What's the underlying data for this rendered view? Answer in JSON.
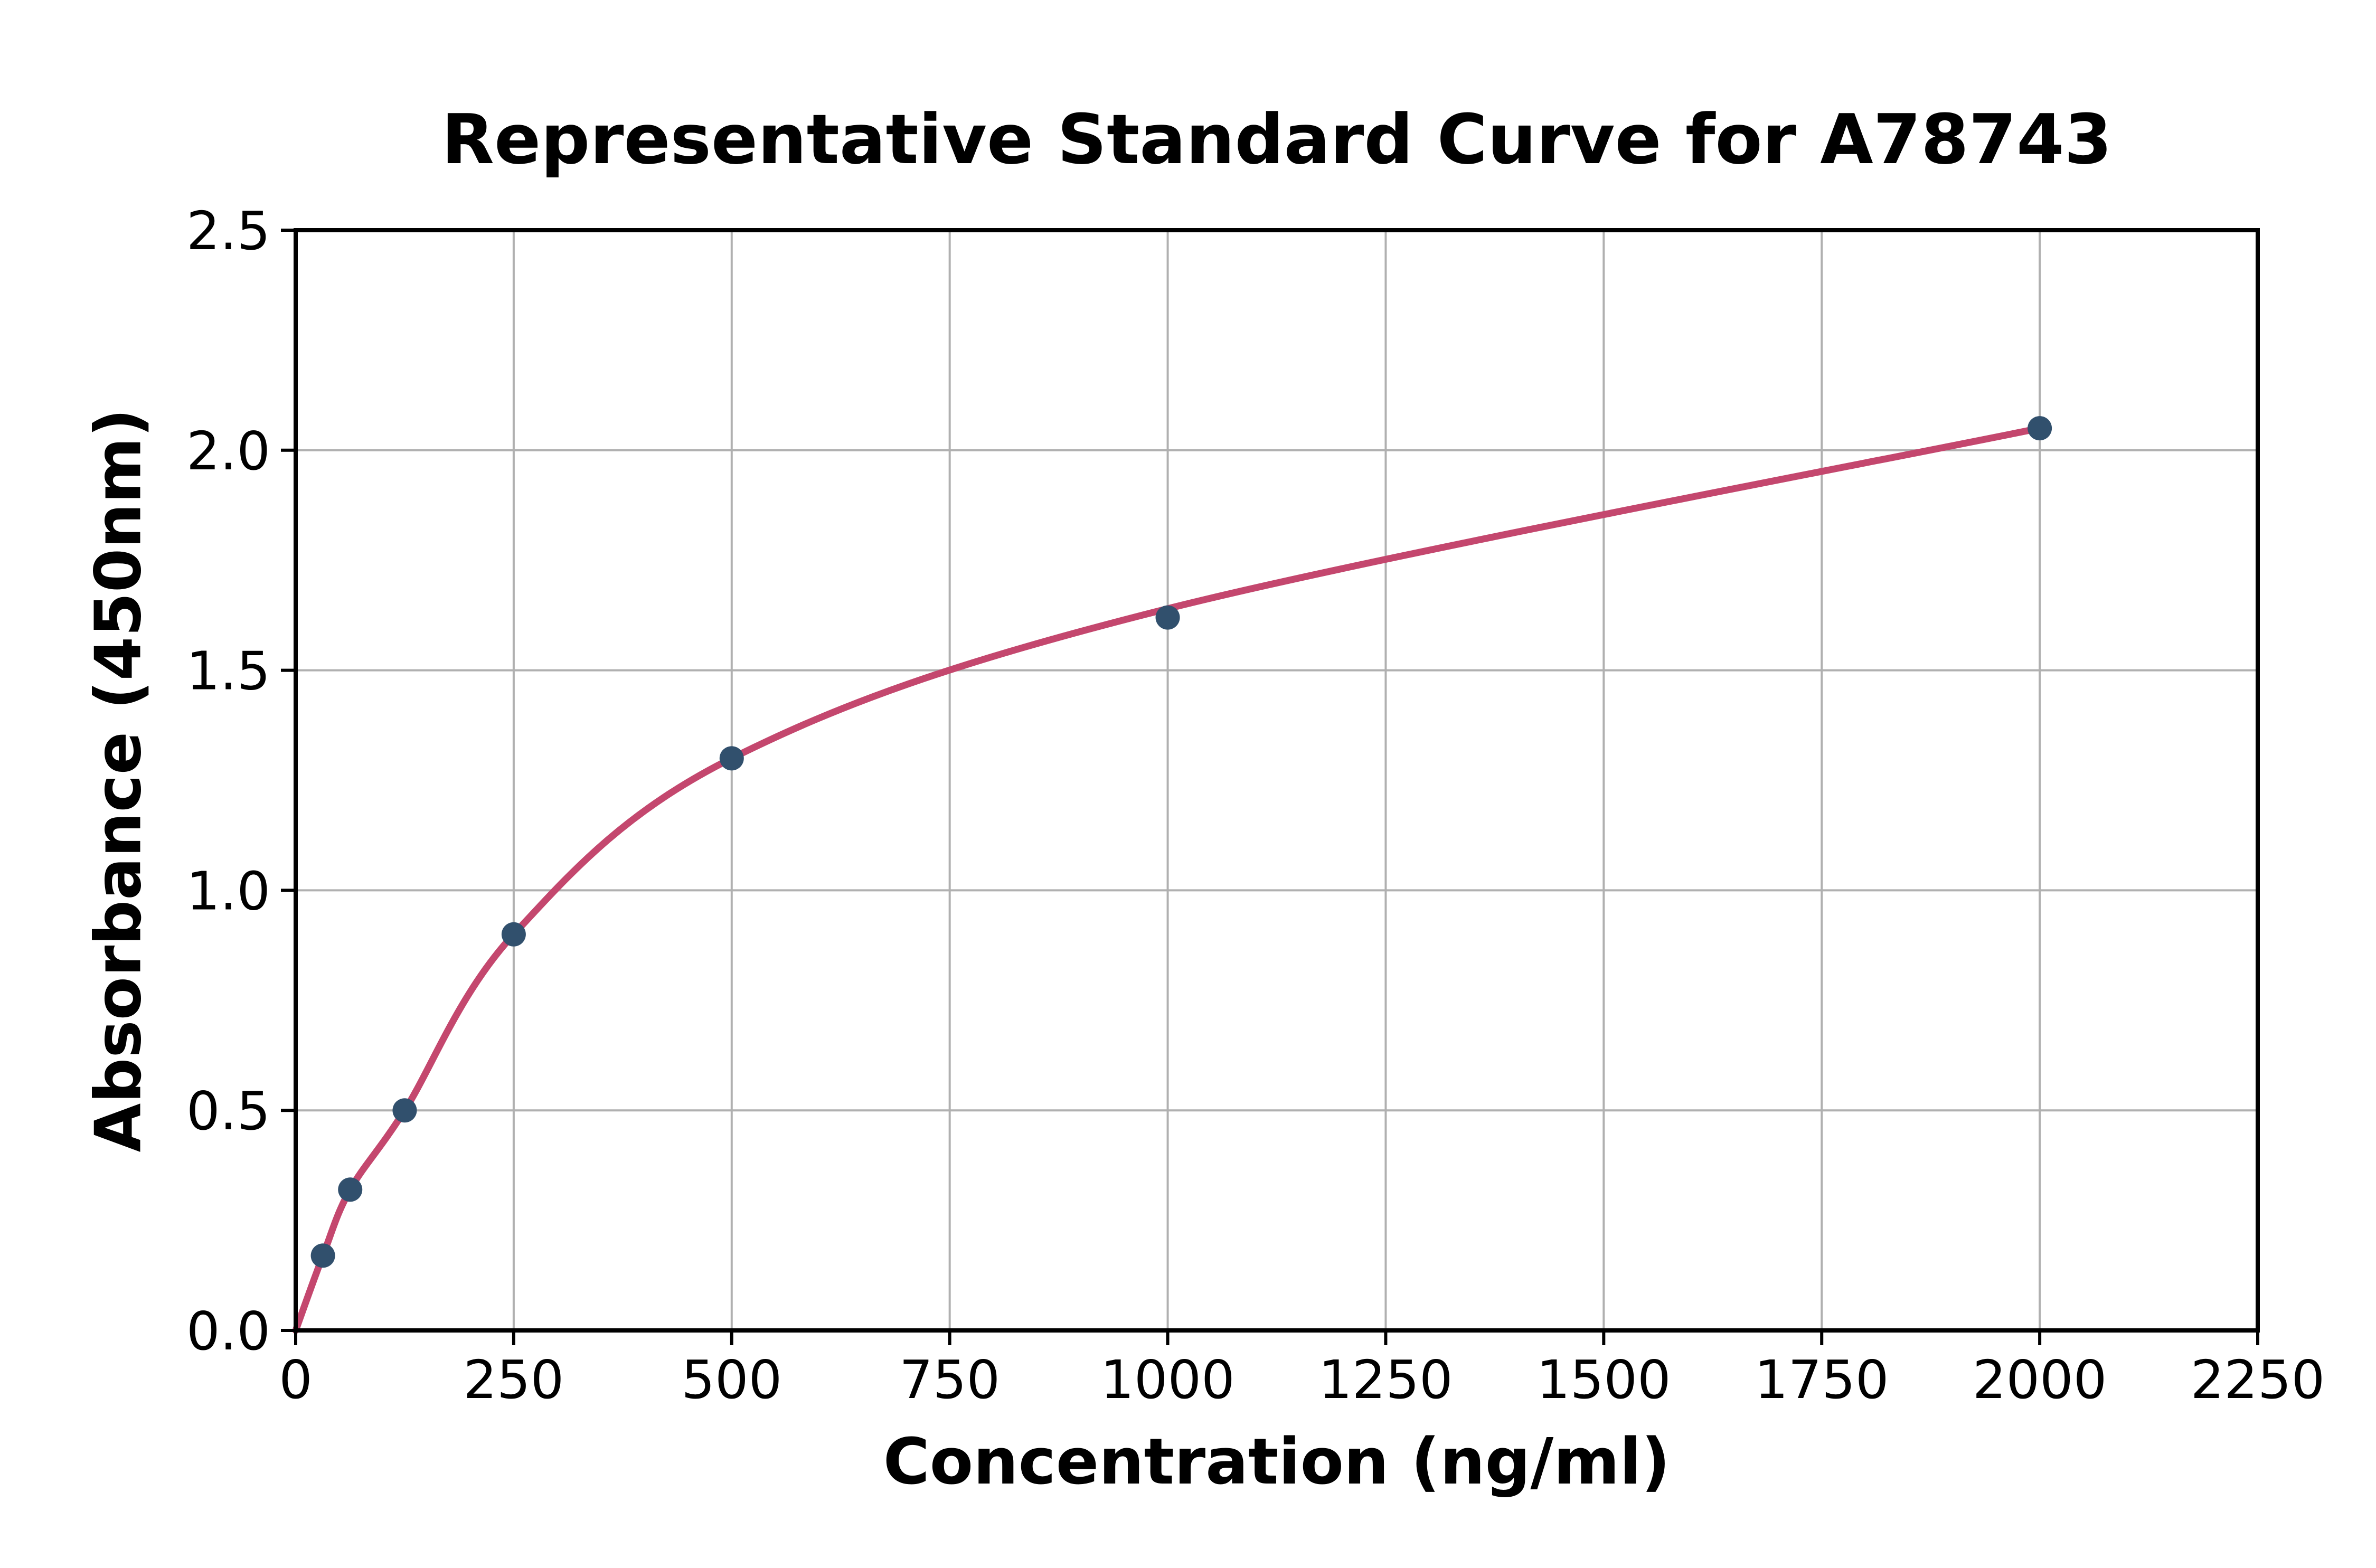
{
  "chart_data": {
    "type": "scatter",
    "title": "Representative Standard Curve for A78743",
    "xlabel": "Concentration (ng/ml)",
    "ylabel": "Absorbance (450nm)",
    "xlim": [
      0,
      2250
    ],
    "ylim": [
      0,
      2.5
    ],
    "x_ticks": [
      0,
      250,
      500,
      750,
      1000,
      1250,
      1500,
      1750,
      2000,
      2250
    ],
    "x_tick_labels": [
      "0",
      "250",
      "500",
      "750",
      "1000",
      "1250",
      "1500",
      "1750",
      "2000",
      "2250"
    ],
    "y_ticks": [
      0,
      0.5,
      1.0,
      1.5,
      2.0,
      2.5
    ],
    "y_tick_labels": [
      "0.0",
      "0.5",
      "1.0",
      "1.5",
      "2.0",
      "2.5"
    ],
    "grid": true,
    "legend": "none",
    "series": [
      {
        "name": "fit-curve",
        "type": "line",
        "x": [
          0,
          31.25,
          62.5,
          125,
          250,
          500,
          1000,
          2000
        ],
        "y": [
          0.0,
          0.17,
          0.32,
          0.5,
          0.9,
          1.3,
          1.64,
          2.05
        ],
        "color": "#c4476e"
      },
      {
        "name": "standard-points",
        "type": "scatter",
        "x": [
          31.25,
          62.5,
          125,
          250,
          500,
          1000,
          2000
        ],
        "y": [
          0.17,
          0.32,
          0.5,
          0.9,
          1.3,
          1.62,
          2.05
        ],
        "color": "#31506d"
      }
    ],
    "colors": {
      "grid": "#b0b0b0",
      "axis": "#000000",
      "text": "#000000",
      "background": "#ffffff"
    }
  }
}
